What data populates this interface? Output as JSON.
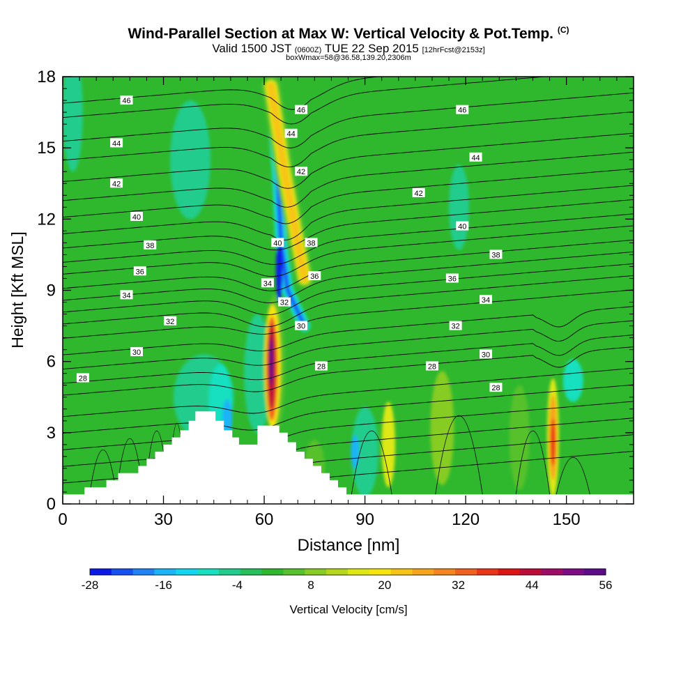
{
  "title": {
    "main": "Wind-Parallel Section at Max W: Vertical Velocity & Pot.Temp.",
    "copyright": "(C)"
  },
  "subtitle": {
    "valid": "Valid 1500 JST",
    "zulu": "(0600Z)",
    "date": "TUE 22 Sep 2015",
    "forecast": "[12hrFcst@2153z]"
  },
  "box_info": "boxWmax=58@36.58,139.20,2306m",
  "colorbar": {
    "label": "Vertical Velocity [cm/s]",
    "tick_labels": [
      "-28",
      "-16",
      "-4",
      "8",
      "20",
      "32",
      "44",
      "56"
    ],
    "colors": [
      "#0b1ae6",
      "#1750f0",
      "#1f82f5",
      "#1cb4f8",
      "#12d6f0",
      "#16e0c0",
      "#20cc8c",
      "#26bf5a",
      "#2fb82e",
      "#56c12a",
      "#86cc24",
      "#b4d71c",
      "#dde812",
      "#f6e50c",
      "#f8c414",
      "#f6a41a",
      "#f4841e",
      "#f0601e",
      "#ea3418",
      "#dc1414",
      "#bc0c38",
      "#9e0c68",
      "#7c0c84",
      "#5c0c88"
    ]
  },
  "chart_data": {
    "type": "heatmap",
    "xlabel": "Distance [nm]",
    "ylabel": "Height [Kft MSL]",
    "xlim": [
      0,
      170
    ],
    "ylim": [
      0,
      18
    ],
    "x_ticks": [
      0,
      30,
      60,
      90,
      120,
      150
    ],
    "y_ticks": [
      0,
      3,
      6,
      9,
      12,
      15,
      18
    ],
    "background_color": "#2fb82e",
    "velocity_cells": [
      {
        "cx": 3,
        "cy": 16.5,
        "rx": 3,
        "ry": 2.5,
        "w": -4
      },
      {
        "cx": 38,
        "cy": 14.5,
        "rx": 6,
        "ry": 2.5,
        "w": -4
      },
      {
        "cx": 118,
        "cy": 12.5,
        "rx": 3,
        "ry": 1.8,
        "w": -4
      },
      {
        "cx": 42,
        "cy": 4.5,
        "rx": 9,
        "ry": 1.8,
        "w": -4
      },
      {
        "cx": 58,
        "cy": 5.5,
        "rx": 4,
        "ry": 2.5,
        "w": -4
      },
      {
        "cx": 47,
        "cy": 4.4,
        "rx": 3.5,
        "ry": 1.5,
        "w": -10
      },
      {
        "cx": 49,
        "cy": 3.6,
        "rx": 1.5,
        "ry": 0.8,
        "w": -16
      },
      {
        "cx": 22,
        "cy": 10.8,
        "rx": 6,
        "ry": 1.2,
        "w": 2
      },
      {
        "cx": 90,
        "cy": 2.2,
        "rx": 4,
        "ry": 1.9,
        "w": -4
      },
      {
        "cx": 87,
        "cy": 2.2,
        "rx": 1.2,
        "ry": 0.7,
        "w": -16
      },
      {
        "cx": 97,
        "cy": 2.5,
        "rx": 2,
        "ry": 1.8,
        "w": 14
      },
      {
        "cx": 113,
        "cy": 3.2,
        "rx": 3.5,
        "ry": 2.4,
        "w": 8
      },
      {
        "cx": 136,
        "cy": 2.8,
        "rx": 3,
        "ry": 2.2,
        "w": 4
      },
      {
        "cx": 75,
        "cy": 1.5,
        "rx": 3,
        "ry": 1.2,
        "w": 4
      },
      {
        "cx": 152,
        "cy": 5.2,
        "rx": 3,
        "ry": 0.9,
        "w": -10
      },
      {
        "cx": 146,
        "cy": 2.8,
        "rx": 1.8,
        "ry": 2.5,
        "w": 14
      },
      {
        "cx": 146,
        "cy": 2.8,
        "rx": 1.2,
        "ry": 1.8,
        "w": 26
      },
      {
        "cx": 146,
        "cy": 2.6,
        "rx": 0.7,
        "ry": 1.0,
        "w": 38
      },
      {
        "cx": 63,
        "cy": 5.8,
        "rx": 3.2,
        "ry": 3.0,
        "w": 4
      },
      {
        "cx": 62.5,
        "cy": 5.8,
        "rx": 2.4,
        "ry": 2.6,
        "w": 20
      },
      {
        "cx": 62.3,
        "cy": 5.7,
        "rx": 1.7,
        "ry": 2.2,
        "w": 32
      },
      {
        "cx": 62.2,
        "cy": 5.8,
        "rx": 1.1,
        "ry": 1.8,
        "w": 44
      },
      {
        "cx": 62.1,
        "cy": 6.0,
        "rx": 0.6,
        "ry": 1.0,
        "w": 54
      }
    ],
    "updraft_band": {
      "points": [
        [
          62,
          17.6
        ],
        [
          66,
          14.0
        ],
        [
          70,
          11.0
        ],
        [
          72,
          9.5
        ]
      ],
      "layers": [
        {
          "width": 5.5,
          "w": 4
        },
        {
          "width": 3.6,
          "w": 14
        },
        {
          "width": 2.2,
          "w": 24
        }
      ]
    },
    "downdraft_band": {
      "points": [
        [
          62,
          17.6
        ],
        [
          64,
          14.0
        ],
        [
          65,
          11.0
        ],
        [
          67,
          9.0
        ],
        [
          72,
          7.5
        ]
      ],
      "layers": [
        {
          "width": 3.5,
          "w": -8
        },
        {
          "width": 2.0,
          "w": -16
        },
        {
          "width": 1.0,
          "w": -22
        }
      ],
      "core": {
        "cx": 64.5,
        "cy": 9.8,
        "rx": 1.0,
        "ry": 1.3,
        "w": -26
      }
    },
    "theta_levels": [
      {
        "base": 0.9,
        "label": null
      },
      {
        "base": 1.6,
        "label": null
      },
      {
        "base": 2.3,
        "label": null
      },
      {
        "base": 3.0,
        "label": null
      },
      {
        "base": 3.7,
        "label": null
      },
      {
        "base": 4.4,
        "label": null
      },
      {
        "base": 5.3,
        "label": "28"
      },
      {
        "base": 5.8,
        "label": null
      },
      {
        "base": 6.4,
        "label": "30"
      },
      {
        "base": 7.0,
        "label": null
      },
      {
        "base": 7.7,
        "label": "32"
      },
      {
        "base": 8.3,
        "label": null
      },
      {
        "base": 8.8,
        "label": "34"
      },
      {
        "base": 9.3,
        "label": null
      },
      {
        "base": 9.8,
        "label": "36"
      },
      {
        "base": 10.4,
        "label": null
      },
      {
        "base": 10.9,
        "label": "38"
      },
      {
        "base": 11.5,
        "label": null
      },
      {
        "base": 12.1,
        "label": "40"
      },
      {
        "base": 12.8,
        "label": null
      },
      {
        "base": 13.5,
        "label": "42"
      },
      {
        "base": 14.3,
        "label": null
      },
      {
        "base": 15.2,
        "label": "44"
      },
      {
        "base": 16.0,
        "label": null
      },
      {
        "base": 17.0,
        "label": "46"
      },
      {
        "base": 17.6,
        "label": null
      }
    ],
    "contour_labels": [
      {
        "text": "46",
        "x": 19,
        "y": 17.0
      },
      {
        "text": "44",
        "x": 16,
        "y": 15.2
      },
      {
        "text": "42",
        "x": 16,
        "y": 13.5
      },
      {
        "text": "40",
        "x": 22,
        "y": 12.1
      },
      {
        "text": "38",
        "x": 26,
        "y": 10.9
      },
      {
        "text": "36",
        "x": 23,
        "y": 9.8
      },
      {
        "text": "34",
        "x": 19,
        "y": 8.8
      },
      {
        "text": "32",
        "x": 32,
        "y": 7.7
      },
      {
        "text": "30",
        "x": 22,
        "y": 6.4
      },
      {
        "text": "28",
        "x": 6,
        "y": 5.3
      },
      {
        "text": "46",
        "x": 71,
        "y": 16.6
      },
      {
        "text": "44",
        "x": 68,
        "y": 15.6
      },
      {
        "text": "42",
        "x": 71,
        "y": 14.0
      },
      {
        "text": "40",
        "x": 64,
        "y": 11.0
      },
      {
        "text": "38",
        "x": 74,
        "y": 11.0
      },
      {
        "text": "36",
        "x": 75,
        "y": 9.6
      },
      {
        "text": "34",
        "x": 61,
        "y": 9.3
      },
      {
        "text": "32",
        "x": 66,
        "y": 8.5
      },
      {
        "text": "30",
        "x": 71,
        "y": 7.5
      },
      {
        "text": "28",
        "x": 77,
        "y": 5.8
      },
      {
        "text": "46",
        "x": 119,
        "y": 16.6
      },
      {
        "text": "44",
        "x": 123,
        "y": 14.6
      },
      {
        "text": "42",
        "x": 106,
        "y": 13.1
      },
      {
        "text": "40",
        "x": 119,
        "y": 11.7
      },
      {
        "text": "38",
        "x": 129,
        "y": 10.5
      },
      {
        "text": "36",
        "x": 116,
        "y": 9.5
      },
      {
        "text": "34",
        "x": 126,
        "y": 8.6
      },
      {
        "text": "32",
        "x": 117,
        "y": 7.5
      },
      {
        "text": "30",
        "x": 126,
        "y": 6.3
      },
      {
        "text": "28",
        "x": 110,
        "y": 5.8
      },
      {
        "text": "28",
        "x": 129,
        "y": 4.9
      }
    ],
    "terrain": {
      "color": "#ffffff",
      "profile": [
        [
          0,
          0.4
        ],
        [
          6.5,
          0.4
        ],
        [
          6.5,
          0.7
        ],
        [
          13,
          0.7
        ],
        [
          13,
          1.0
        ],
        [
          16.5,
          1.0
        ],
        [
          16.5,
          1.3
        ],
        [
          22.5,
          1.3
        ],
        [
          22.5,
          1.6
        ],
        [
          25,
          1.6
        ],
        [
          25,
          1.9
        ],
        [
          27.5,
          1.9
        ],
        [
          27.5,
          2.2
        ],
        [
          30,
          2.2
        ],
        [
          30,
          2.5
        ],
        [
          32.5,
          2.5
        ],
        [
          32.5,
          2.8
        ],
        [
          35,
          2.8
        ],
        [
          35,
          3.1
        ],
        [
          37.5,
          3.1
        ],
        [
          37.5,
          3.5
        ],
        [
          39.5,
          3.5
        ],
        [
          39.5,
          3.9
        ],
        [
          45.5,
          3.9
        ],
        [
          45.5,
          3.5
        ],
        [
          48,
          3.5
        ],
        [
          48,
          3.1
        ],
        [
          50.5,
          3.1
        ],
        [
          50.5,
          2.8
        ],
        [
          52.5,
          2.8
        ],
        [
          52.5,
          2.5
        ],
        [
          58,
          2.5
        ],
        [
          58,
          3.3
        ],
        [
          64.5,
          3.3
        ],
        [
          64.5,
          3.0
        ],
        [
          67,
          3.0
        ],
        [
          67,
          2.6
        ],
        [
          69.5,
          2.6
        ],
        [
          69.5,
          2.2
        ],
        [
          72,
          2.2
        ],
        [
          72,
          1.9
        ],
        [
          74.5,
          1.9
        ],
        [
          74.5,
          1.6
        ],
        [
          77,
          1.6
        ],
        [
          77,
          1.3
        ],
        [
          79.5,
          1.3
        ],
        [
          79.5,
          1.0
        ],
        [
          82,
          1.0
        ],
        [
          82,
          0.7
        ],
        [
          84.5,
          0.7
        ],
        [
          84.5,
          0.4
        ],
        [
          170,
          0.4
        ]
      ]
    }
  }
}
